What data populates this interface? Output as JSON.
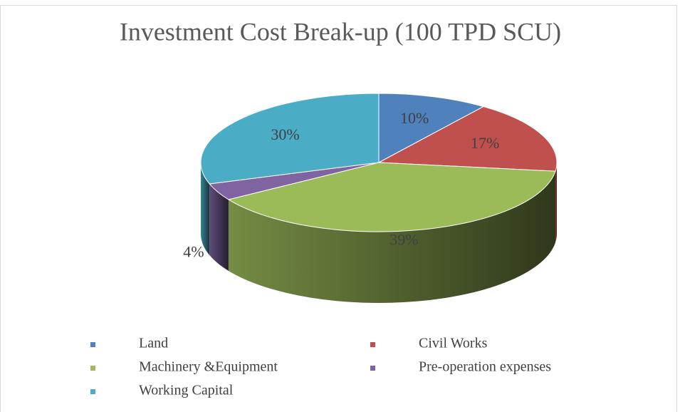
{
  "chart_data": {
    "type": "pie",
    "title": "Investment Cost Break-up (100 TPD SCU)",
    "categories": [
      "Land",
      "Civil Works",
      "Machinery &Equipment",
      "Pre-operation expenses",
      "Working Capital"
    ],
    "values": [
      10,
      17,
      39,
      4,
      30
    ],
    "value_labels": [
      "10%",
      "17%",
      "39%",
      "4%",
      "30%"
    ],
    "colors": [
      "#4f81bd",
      "#c0504d",
      "#9bbb59",
      "#8064a2",
      "#4bacc6"
    ],
    "legend": "bottom"
  }
}
